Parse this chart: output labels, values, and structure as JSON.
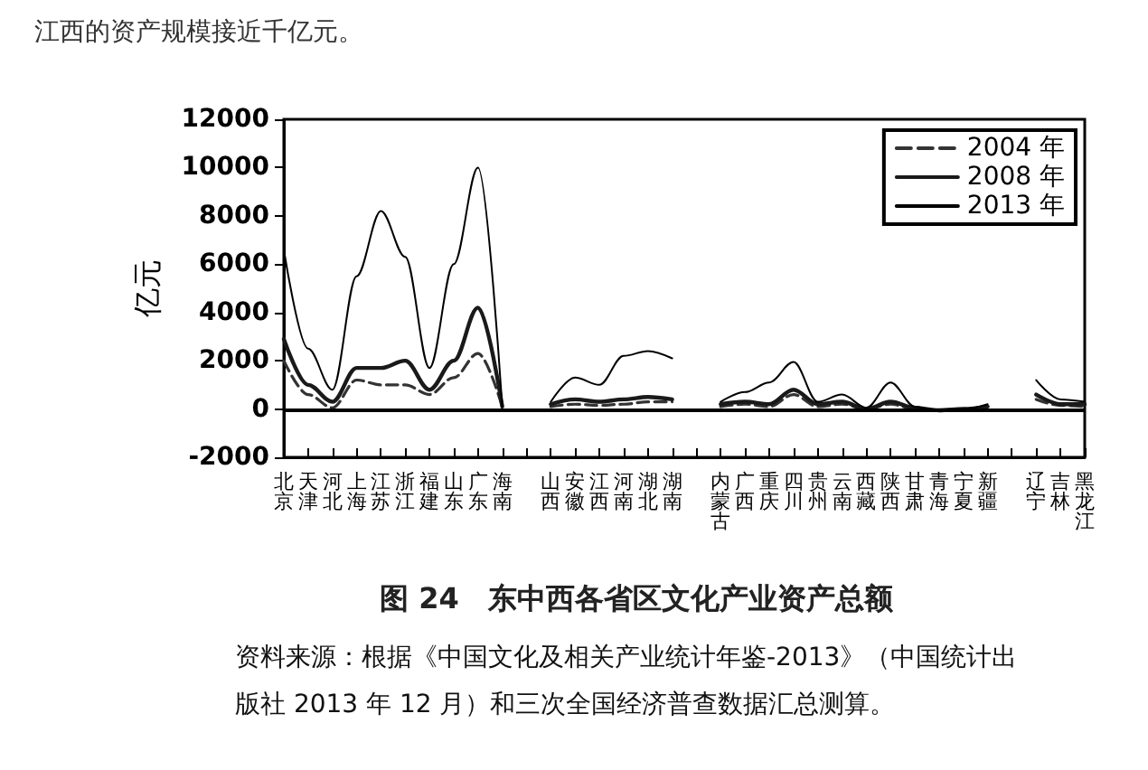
{
  "chart_data": {
    "type": "line",
    "title": "图 24　东中西各省区文化产业资产总额",
    "ylabel": "亿元",
    "annotations": [
      "江西的资产规模接近千亿元。",
      "资料来源：根据《中国文化及相关产业统计年鉴-2013》（中国统计出版社 2013 年 12 月）和三次全国经济普查数据汇总测算。"
    ],
    "categories": [
      "北京",
      "天津",
      "河北",
      "上海",
      "江苏",
      "浙江",
      "福建",
      "山东",
      "广东",
      "海南",
      null,
      "山西",
      "安徽",
      "江西",
      "河南",
      "湖北",
      "湖南",
      null,
      "内蒙古",
      "广西",
      "重庆",
      "四川",
      "贵州",
      "云南",
      "西藏",
      "陕西",
      "甘肃",
      "青海",
      "宁夏",
      "新疆",
      null,
      "辽宁",
      "吉林",
      "黑龙江"
    ],
    "series": [
      {
        "name": "2004 年",
        "color": "#333333",
        "line_style": "dashed",
        "values": [
          2000,
          600,
          50,
          1200,
          1000,
          1000,
          600,
          1300,
          2300,
          100,
          null,
          100,
          200,
          150,
          200,
          300,
          300,
          null,
          100,
          200,
          100,
          600,
          100,
          200,
          0,
          200,
          0,
          -50,
          0,
          50,
          null,
          400,
          150,
          100
        ]
      },
      {
        "name": "2008 年",
        "color": "#1a1a1a",
        "line_style": "solid",
        "values": [
          2900,
          1000,
          300,
          1700,
          1700,
          2000,
          800,
          2000,
          4200,
          100,
          null,
          200,
          400,
          300,
          400,
          500,
          400,
          null,
          200,
          300,
          200,
          800,
          200,
          300,
          0,
          300,
          50,
          -50,
          0,
          100,
          null,
          600,
          200,
          200
        ]
      },
      {
        "name": "2013 年",
        "color": "#000000",
        "line_style": "solid",
        "values": [
          6600,
          2500,
          800,
          5500,
          8200,
          6300,
          1700,
          6000,
          10000,
          100,
          null,
          300,
          1300,
          1000,
          2200,
          2400,
          2100,
          null,
          300,
          700,
          1100,
          1950,
          300,
          600,
          50,
          1100,
          100,
          -100,
          0,
          200,
          null,
          1200,
          400,
          300
        ]
      }
    ],
    "ylim": [
      -2000,
      12000
    ],
    "yticks": [
      -2000,
      0,
      2000,
      4000,
      6000,
      8000,
      10000,
      12000
    ],
    "ref_lines": [
      {
        "axis": "y",
        "value": 0
      }
    ],
    "grid": false,
    "legend": "top right",
    "marker": "none"
  }
}
